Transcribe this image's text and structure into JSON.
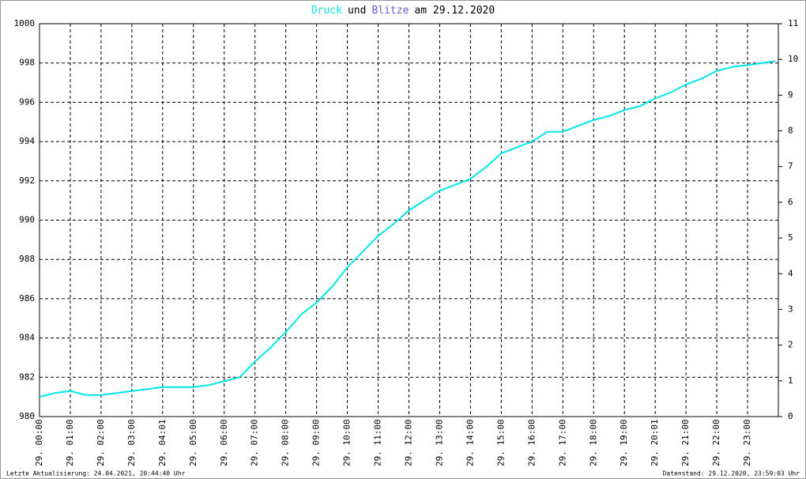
{
  "chart_data": {
    "type": "line",
    "title_parts": [
      {
        "text": "Druck",
        "color": "#00e5e5"
      },
      {
        "text": "und",
        "color": "#000000"
      },
      {
        "text": "Blitze",
        "color": "#6a5acd"
      },
      {
        "text": "am 29.12.2020",
        "color": "#000000"
      }
    ],
    "x": [
      0,
      0.5,
      1,
      1.5,
      2,
      2.5,
      3,
      3.5,
      4,
      4.5,
      5,
      5.5,
      6,
      6.5,
      7,
      7.5,
      8,
      8.5,
      9,
      9.5,
      10,
      10.5,
      11,
      11.5,
      12,
      12.5,
      13,
      13.5,
      14,
      14.5,
      15,
      15.5,
      16,
      16.5,
      17,
      17.5,
      18,
      18.5,
      19,
      19.5,
      20,
      20.5,
      21,
      21.5,
      22,
      22.5,
      23,
      23.5,
      23.9
    ],
    "series": [
      {
        "name": "Druck",
        "color": "#00e5e5",
        "values": [
          981.0,
          981.2,
          981.3,
          981.1,
          981.1,
          981.2,
          981.3,
          981.4,
          981.5,
          981.5,
          981.5,
          981.6,
          981.8,
          982.0,
          982.8,
          983.5,
          984.3,
          985.2,
          985.8,
          986.6,
          987.6,
          988.4,
          989.2,
          989.8,
          990.5,
          991.0,
          991.5,
          991.8,
          992.1,
          992.7,
          993.4,
          993.7,
          994.0,
          994.5,
          994.5,
          994.8,
          995.1,
          995.3,
          995.6,
          995.8,
          996.2,
          996.5,
          996.9,
          997.2,
          997.6,
          997.8,
          997.9,
          998.0,
          998.1
        ]
      }
    ],
    "xlim": [
      0,
      24
    ],
    "xticks": [
      {
        "value": 0,
        "label": "29. 00:00"
      },
      {
        "value": 1,
        "label": "29. 01:00"
      },
      {
        "value": 2,
        "label": "29. 02:00"
      },
      {
        "value": 3,
        "label": "29. 03:00"
      },
      {
        "value": 4,
        "label": "29. 04:01"
      },
      {
        "value": 5,
        "label": "29. 05:00"
      },
      {
        "value": 6,
        "label": "29. 06:00"
      },
      {
        "value": 7,
        "label": "29. 07:00"
      },
      {
        "value": 8,
        "label": "29. 08:00"
      },
      {
        "value": 9,
        "label": "29. 09:00"
      },
      {
        "value": 10,
        "label": "29. 10:00"
      },
      {
        "value": 11,
        "label": "29. 11:00"
      },
      {
        "value": 12,
        "label": "29. 12:00"
      },
      {
        "value": 13,
        "label": "29. 13:00"
      },
      {
        "value": 14,
        "label": "29. 14:00"
      },
      {
        "value": 15,
        "label": "29. 15:00"
      },
      {
        "value": 16,
        "label": "29. 16:00"
      },
      {
        "value": 17,
        "label": "29. 17:00"
      },
      {
        "value": 18,
        "label": "29. 18:00"
      },
      {
        "value": 19,
        "label": "29. 19:00"
      },
      {
        "value": 20,
        "label": "29. 20:01"
      },
      {
        "value": 21,
        "label": "29. 21:00"
      },
      {
        "value": 22,
        "label": "29. 22:00"
      },
      {
        "value": 23,
        "label": "29. 23:00"
      }
    ],
    "ylim": [
      980,
      1000
    ],
    "yticks": [
      980,
      982,
      984,
      986,
      988,
      990,
      992,
      994,
      996,
      998,
      1000
    ],
    "y2lim": [
      0,
      11
    ],
    "y2ticks": [
      0,
      1,
      2,
      3,
      4,
      5,
      6,
      7,
      8,
      9,
      10,
      11
    ],
    "grid": true,
    "footer_left": "Letzte Aktualisierung: 24.04.2021, 20:44:40 Uhr",
    "footer_right": "Datenstand: 29.12.2020, 23:59:03 Uhr"
  }
}
